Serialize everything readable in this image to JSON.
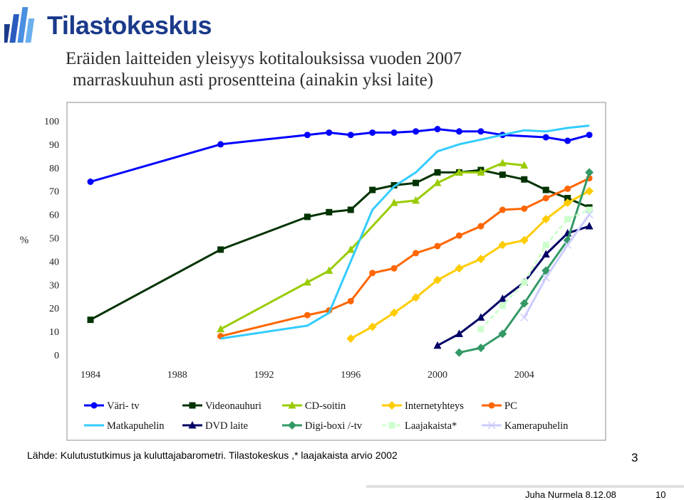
{
  "logo": {
    "text": "Tilastokeskus",
    "color": "#1a3a8a"
  },
  "title": {
    "line1": "Eräiden laitteiden yleisyys kotitalouksissa vuoden 2007",
    "line2": "marraskuuhun asti prosentteina (ainakin yksi laite)"
  },
  "chart_data": {
    "type": "line",
    "title": "Eräiden laitteiden yleisyys kotitalouksissa vuoden 2007 marraskuuhun asti prosentteina (ainakin yksi laite)",
    "xlabel": "",
    "ylabel": "%",
    "xlim": [
      1984,
      2006.8
    ],
    "ylim": [
      0,
      100
    ],
    "xticks": [
      "1984",
      "1988",
      "1992",
      "1996",
      "2000",
      "2004"
    ],
    "yticks": [
      "0",
      "10",
      "20",
      "30",
      "40",
      "50",
      "60",
      "70",
      "80",
      "90",
      "100"
    ],
    "grid": false,
    "series": [
      {
        "name": "Väri- tv",
        "color": "#0000ff",
        "marker": "circle",
        "dash": false,
        "points": [
          [
            1984,
            74
          ],
          [
            1990,
            90
          ],
          [
            1994,
            94
          ],
          [
            1995,
            95
          ],
          [
            1996,
            94
          ],
          [
            1997,
            95
          ],
          [
            1998,
            95
          ],
          [
            1999,
            95.5
          ],
          [
            2000,
            96.5
          ],
          [
            2001,
            95.5
          ],
          [
            2002,
            95.5
          ],
          [
            2003,
            94
          ],
          [
            2005,
            93
          ],
          [
            2006,
            91.5
          ],
          [
            2007,
            94
          ]
        ]
      },
      {
        "name": "Videonauhuri",
        "color": "#003300",
        "marker": "square",
        "dash": false,
        "points": [
          [
            1984,
            15
          ],
          [
            1990,
            45
          ],
          [
            1994,
            59
          ],
          [
            1995,
            61
          ],
          [
            1996,
            62
          ],
          [
            1997,
            70.5
          ],
          [
            1998,
            72.5
          ],
          [
            1999,
            73.5
          ],
          [
            2000,
            78
          ],
          [
            2001,
            78
          ],
          [
            2002,
            79
          ],
          [
            2003,
            77
          ],
          [
            2004,
            75
          ],
          [
            2005,
            70.5
          ],
          [
            2006,
            67
          ],
          [
            2007,
            63
          ]
        ]
      },
      {
        "name": "CD-soitin",
        "color": "#99cc00",
        "marker": "triangle",
        "dash": false,
        "points": [
          [
            1990,
            11
          ],
          [
            1994,
            31
          ],
          [
            1995,
            36
          ],
          [
            1996,
            45
          ],
          [
            1998,
            65
          ],
          [
            1999,
            66
          ],
          [
            2000,
            73.5
          ],
          [
            2001,
            78
          ],
          [
            2002,
            78
          ],
          [
            2003,
            82
          ],
          [
            2004,
            81
          ]
        ]
      },
      {
        "name": "Internetyhteys",
        "color": "#ffcc00",
        "marker": "diamond",
        "dash": false,
        "points": [
          [
            1996,
            7
          ],
          [
            1997,
            12
          ],
          [
            1998,
            18
          ],
          [
            1999,
            24.5
          ],
          [
            2000,
            32
          ],
          [
            2001,
            37
          ],
          [
            2002,
            41
          ],
          [
            2003,
            47
          ],
          [
            2004,
            49
          ],
          [
            2005,
            58
          ],
          [
            2006,
            65
          ],
          [
            2007,
            70
          ]
        ]
      },
      {
        "name": "PC",
        "color": "#ff6600",
        "marker": "circle",
        "dash": false,
        "points": [
          [
            1990,
            8
          ],
          [
            1994,
            17
          ],
          [
            1995,
            19
          ],
          [
            1996,
            23
          ],
          [
            1997,
            35
          ],
          [
            1998,
            37
          ],
          [
            1999,
            43.5
          ],
          [
            2000,
            46.5
          ],
          [
            2001,
            51
          ],
          [
            2002,
            55
          ],
          [
            2003,
            62
          ],
          [
            2004,
            62.5
          ],
          [
            2005,
            67
          ],
          [
            2006,
            71
          ],
          [
            2007,
            75.5
          ]
        ]
      },
      {
        "name": "Matkapuhelin",
        "color": "#33ccff",
        "marker": "none",
        "dash": false,
        "points": [
          [
            1990,
            7
          ],
          [
            1994,
            12.5
          ],
          [
            1995,
            18
          ],
          [
            1996,
            40
          ],
          [
            1997,
            62
          ],
          [
            1998,
            72
          ],
          [
            1999,
            78
          ],
          [
            2000,
            87
          ],
          [
            2001,
            90
          ],
          [
            2002,
            92
          ],
          [
            2003,
            94
          ],
          [
            2004,
            96
          ],
          [
            2005,
            95.5
          ],
          [
            2006,
            97
          ],
          [
            2007,
            98
          ]
        ]
      },
      {
        "name": "DVD laite",
        "color": "#000066",
        "marker": "triangle",
        "dash": false,
        "points": [
          [
            2000,
            4
          ],
          [
            2001,
            9
          ],
          [
            2002,
            16
          ],
          [
            2003,
            24
          ],
          [
            2004,
            31
          ],
          [
            2005,
            43
          ],
          [
            2006,
            52
          ],
          [
            2007,
            55
          ]
        ]
      },
      {
        "name": "Digi-boxi /-tv",
        "color": "#339966",
        "marker": "diamond",
        "dash": false,
        "points": [
          [
            2001,
            1
          ],
          [
            2002,
            3
          ],
          [
            2003,
            9
          ],
          [
            2004,
            22
          ],
          [
            2005,
            36
          ],
          [
            2006,
            49
          ],
          [
            2007,
            78
          ]
        ]
      },
      {
        "name": "Laajakaista*",
        "color": "#ccffcc",
        "marker": "square",
        "dash": true,
        "points": [
          [
            2002,
            11
          ],
          [
            2003,
            21
          ],
          [
            2004,
            31
          ],
          [
            2005,
            47
          ],
          [
            2006,
            58
          ],
          [
            2007,
            62
          ]
        ]
      },
      {
        "name": "Kamerapuhelin",
        "color": "#ccccff",
        "marker": "cross",
        "dash": false,
        "points": [
          [
            2004,
            16
          ],
          [
            2005,
            33
          ],
          [
            2006,
            47
          ],
          [
            2007,
            60
          ]
        ]
      }
    ],
    "legend_placement": "bottom"
  },
  "footer": {
    "source": "Lähde: Kulutustutkimus ja kuluttajabarometri. Tilastokeskus ,* laajakaista arvio 2002",
    "slide_number": "3",
    "author": "Juha Nurmela 8.12.08",
    "page": "10"
  }
}
